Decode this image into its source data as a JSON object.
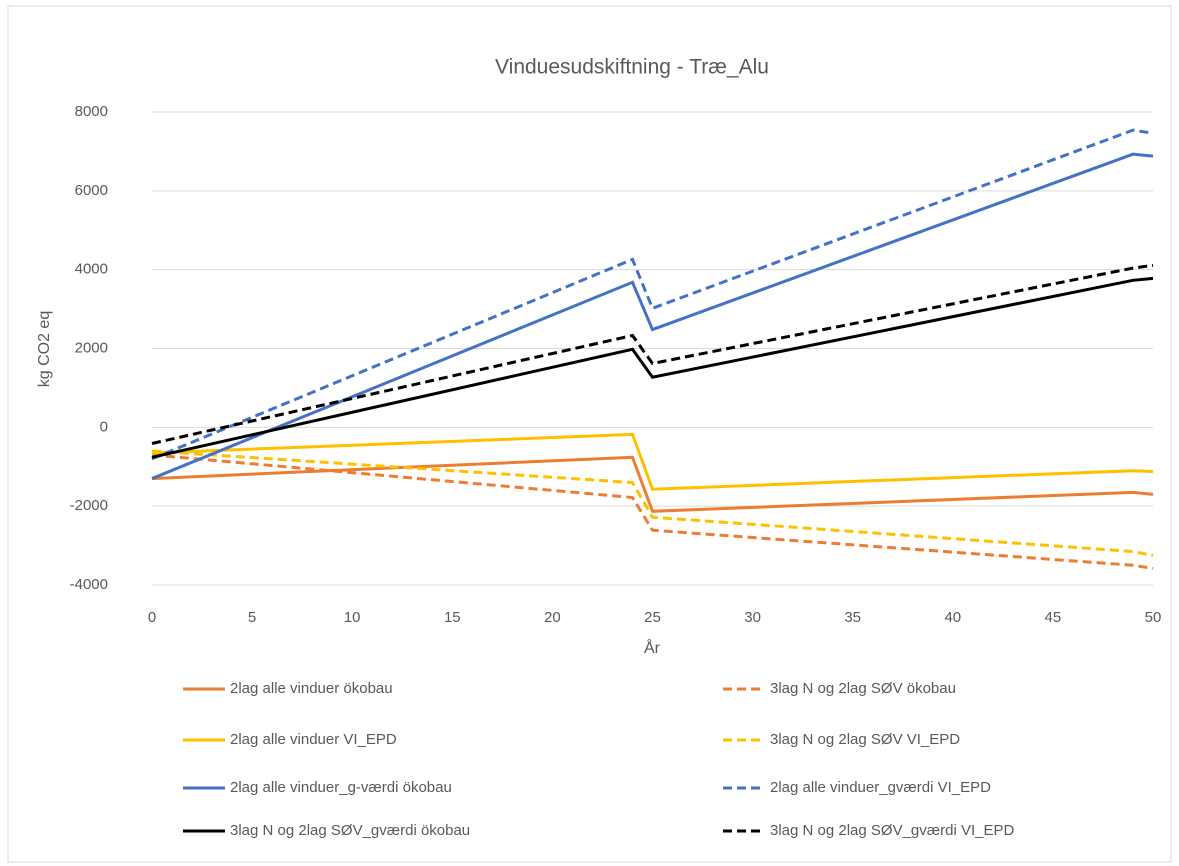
{
  "chart_data": {
    "type": "line",
    "title": "Vinduesudskiftning - Træ_Alu",
    "x_label": "År",
    "y_label": "kg CO2 eq",
    "x": [
      0,
      24,
      25,
      49,
      50
    ],
    "xlim": [
      0,
      50
    ],
    "xticks": [
      0,
      5,
      10,
      15,
      20,
      25,
      30,
      35,
      40,
      45,
      50
    ],
    "ylim": [
      -4000,
      8000
    ],
    "yticks": [
      -4000,
      -2000,
      0,
      2000,
      4000,
      6000,
      8000
    ],
    "grid": true,
    "legend": "bottom",
    "series": [
      {
        "name": "2lag alle vinduer ökobau",
        "color": "#ed7d31",
        "dashed": false,
        "values": [
          -1300,
          -760,
          -2130,
          -1650,
          -1700
        ]
      },
      {
        "name": "3lag N og 2lag SØV ökobau",
        "color": "#ed7d31",
        "dashed": true,
        "values": [
          -700,
          -1780,
          -2610,
          -3500,
          -3580
        ]
      },
      {
        "name": "2lag alle vinduer VI_EPD",
        "color": "#ffc000",
        "dashed": false,
        "values": [
          -650,
          -180,
          -1570,
          -1100,
          -1120
        ]
      },
      {
        "name": "3lag N og 2lag SØV VI_EPD",
        "color": "#ffc000",
        "dashed": true,
        "values": [
          -600,
          -1400,
          -2280,
          -3150,
          -3250
        ]
      },
      {
        "name": "2lag alle vinduer_g-værdi ökobau",
        "color": "#4472c4",
        "dashed": false,
        "values": [
          -1300,
          3680,
          2480,
          6930,
          6880
        ]
      },
      {
        "name": "2lag alle vinduer_gværdi VI_EPD",
        "color": "#4472c4",
        "dashed": true,
        "values": [
          -800,
          4260,
          3020,
          7540,
          7460
        ]
      },
      {
        "name": "3lag N og 2lag SØV_gværdi ökobau",
        "color": "#000000",
        "dashed": false,
        "values": [
          -760,
          1980,
          1270,
          3730,
          3780
        ]
      },
      {
        "name": "3lag N og 2lag SØV_gværdi VI_EPD",
        "color": "#000000",
        "dashed": true,
        "values": [
          -410,
          2330,
          1620,
          4040,
          4110
        ]
      }
    ]
  }
}
